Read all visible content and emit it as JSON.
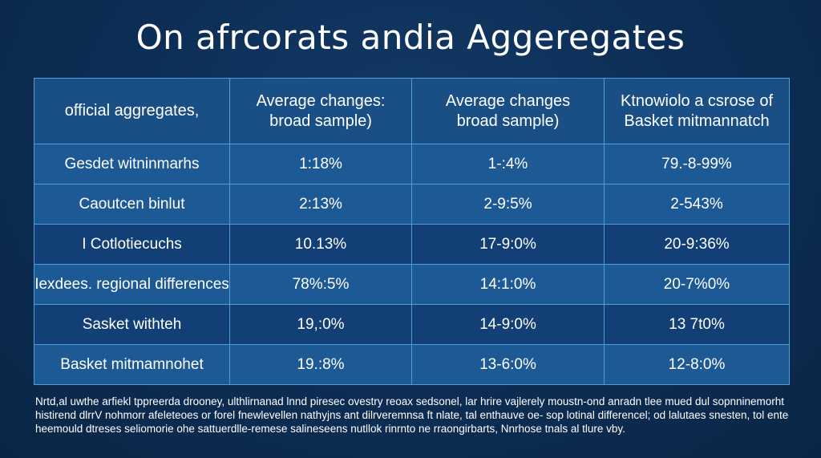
{
  "title": "On afrcorats andia Aggeregates",
  "table": {
    "headers": [
      [
        "official aggregates,"
      ],
      [
        "Average changes:",
        "broad sample)"
      ],
      [
        "Average changes",
        "broad sample)"
      ],
      [
        "Ktnowiolo a csrose of",
        "Basket mitmannatch"
      ]
    ],
    "rows": [
      [
        "Gesdet witninmarhs",
        "1:18%",
        "1-:4%",
        "79.-8-99%"
      ],
      [
        "Caoutcen binlut",
        "2:13%",
        "2-9:5%",
        "2-543%"
      ],
      [
        "I Cotlotiecuchs",
        "10.13%",
        "17-9:0%",
        "20-9:36%"
      ],
      [
        "Iexdees. regional differences",
        "78%:5%",
        "14:1:0%",
        "20-7%0%"
      ],
      [
        "Sasket withteh",
        "19,:0%",
        "14-9:0%",
        "13 7t0%"
      ],
      [
        "Basket mitmamnohet",
        "19.:8%",
        "13-6:0%",
        "12-8:0%"
      ]
    ]
  },
  "footnote": [
    "Nrtd,al uwthe arfiekl tppreerda drooney, ulthlirnanad lnnd piresec ovestry reoax sedsonel, lar hrire vajlerely moustn-ond anradn tlee mued dul sopnninemorht",
    "histirend dlrrV nohmorr afeleteoes or forel fnewlevellen nathyjns ant dilrveremnsa ft nlate, tal enthauve oe- sop lotinal differencel; od lalutaes snesten, tol ented",
    "heemould dtreses seliomorie ohe sattuerdlle-remese salineseens nutllok rinrnto ne rraongirbarts, Nnrhose tnals al tlure vby."
  ]
}
